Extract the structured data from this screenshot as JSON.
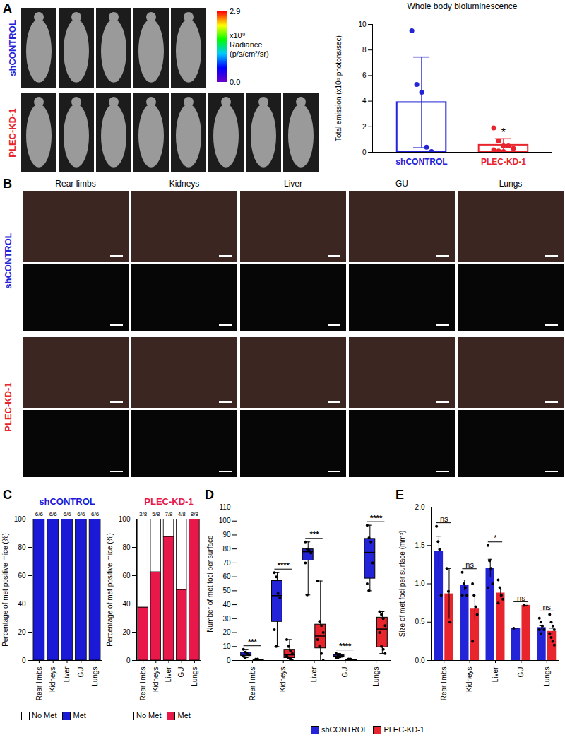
{
  "panels": [
    "A",
    "B",
    "C",
    "D",
    "E"
  ],
  "images": {
    "bioluminescence": {
      "groups": [
        {
          "name": "shCONTROL",
          "color": "#2323d8",
          "mice": 5
        },
        {
          "name": "PLEC-KD-1",
          "color": "#e8242c",
          "mice": 8
        }
      ],
      "colorbar": {
        "label": [
          "x10⁹",
          "Radiance",
          "(p/s/cm²/sr)"
        ],
        "range": [
          0,
          2.9
        ],
        "ticks": [
          2.9,
          {
            "value": 0,
            "label": "0.0"
          }
        ],
        "colors": [
          "#6a00c8",
          "#0000ff",
          "#00c8ff",
          "#00ff00",
          "#ffff00",
          "#ff0000"
        ]
      }
    },
    "organ_photos": {
      "columns": [
        "Rear limbs",
        "Kidneys",
        "Liver",
        "GU",
        "Lungs"
      ],
      "rows": [
        {
          "name": "shCONTROL",
          "color": "#2323d8"
        },
        {
          "name": "PLEC-KD-1",
          "color": "#e8242c"
        }
      ]
    }
  },
  "chart_data": [
    {
      "type": "bar",
      "title": "Whole body bioluminescence",
      "categories": [
        "shCONTROL",
        "PLEC-KD-1"
      ],
      "values": [
        3.9,
        0.56
      ],
      "errors": [
        3.55,
        0.5
      ],
      "points": [
        [
          9.5,
          5.3,
          4.7,
          0.4,
          0.05
        ],
        [
          1.9,
          0.9,
          0.5,
          0.5,
          0.3,
          0.2,
          0.1,
          0.05
        ]
      ],
      "colors": [
        "#2323d8",
        "#e8242c"
      ],
      "ylabel": "Total emission (x10⁸ photons/sec)",
      "ylim": [
        0,
        10
      ],
      "yticks": [
        0,
        2,
        4,
        6,
        8,
        10
      ],
      "annotations": [
        {
          "category": "PLEC-KD-1",
          "text": "*"
        }
      ]
    },
    {
      "type": "bar",
      "stacked": true,
      "title": "shCONTROL",
      "color": "#1a1ad6",
      "categories": [
        "Rear limbs",
        "Kidneys",
        "Liver",
        "GU",
        "Lungs"
      ],
      "series": [
        {
          "name": "No Met",
          "color": "#ffffff",
          "values": [
            0,
            0,
            0,
            0,
            0
          ]
        },
        {
          "name": "Met",
          "color": "#1a1ad6",
          "values": [
            100,
            100,
            100,
            100,
            100
          ]
        }
      ],
      "bar_labels": [
        "6/6",
        "6/6",
        "6/6",
        "6/6",
        "6/6"
      ],
      "ylabel": "Percentage of met positive mice (%)",
      "ylim": [
        0,
        100
      ],
      "yticks": [
        0,
        20,
        40,
        60,
        80,
        100
      ],
      "legend": "bottom"
    },
    {
      "type": "bar",
      "stacked": true,
      "title": "PLEC-KD-1",
      "color": "#e8184a",
      "categories": [
        "Rear limbs",
        "Kidneys",
        "Liver",
        "GU",
        "Lungs"
      ],
      "series": [
        {
          "name": "No Met",
          "color": "#ffffff",
          "values": [
            62.5,
            37.5,
            12.5,
            50,
            0
          ]
        },
        {
          "name": "Met",
          "color": "#e8184a",
          "values": [
            37.5,
            62.5,
            87.5,
            50,
            100
          ]
        }
      ],
      "bar_labels": [
        "3/8",
        "5/8",
        "7/8",
        "4/8",
        "8/8"
      ],
      "ylabel": "Percentage of met positive mice (%)",
      "ylim": [
        0,
        100
      ],
      "yticks": [
        0,
        20,
        40,
        60,
        80,
        100
      ],
      "legend": "bottom"
    },
    {
      "type": "box",
      "categories": [
        "Rear limbs",
        "Kidneys",
        "Liver",
        "GU",
        "Lungs"
      ],
      "series": [
        {
          "name": "shCONTROL",
          "color": "#2323d8",
          "points": [
            [
              8,
              6,
              5,
              4,
              3,
              2
            ],
            [
              63,
              60,
              48,
              45,
              22,
              10
            ],
            [
              85,
              80,
              79,
              77,
              70,
              47
            ],
            [
              5,
              4,
              3,
              3,
              2,
              2
            ],
            [
              97,
              88,
              85,
              70,
              55,
              50
            ]
          ]
        },
        {
          "name": "PLEC-KD-1",
          "color": "#e8242c",
          "points": [
            [
              1,
              1,
              0,
              0,
              0,
              0,
              0,
              0
            ],
            [
              15,
              10,
              7,
              5,
              3,
              2,
              1,
              0
            ],
            [
              57,
              28,
              25,
              20,
              15,
              10,
              5,
              0
            ],
            [
              1,
              1,
              0,
              0,
              0,
              0,
              0,
              0
            ],
            [
              35,
              33,
              30,
              25,
              20,
              10,
              8,
              5
            ]
          ]
        }
      ],
      "annotations": [
        "***",
        "****",
        "***",
        "****",
        "****"
      ],
      "ylabel": "Number of met foci per surface",
      "ylim": [
        0,
        110
      ],
      "yticks": [
        0,
        10,
        20,
        30,
        40,
        50,
        60,
        70,
        80,
        90,
        100,
        110
      ],
      "legend": "bottom"
    },
    {
      "type": "bar",
      "categories": [
        "Rear limbs",
        "Kidneys",
        "Liver",
        "GU",
        "Lungs"
      ],
      "series": [
        {
          "name": "shCONTROL",
          "color": "#2323d8",
          "values": [
            1.42,
            0.98,
            1.2,
            0.42,
            0.43
          ],
          "errors": [
            0.2,
            0.07,
            0.12,
            0,
            0.03
          ],
          "points": [
            [
              1.75,
              1.55,
              1.45,
              0.85
            ],
            [
              1.15,
              1.0,
              0.95,
              0.85,
              0.85
            ],
            [
              1.5,
              1.3,
              1.2,
              1.0,
              0.95
            ],
            [
              0.42
            ],
            [
              0.55,
              0.5,
              0.45,
              0.4,
              0.4,
              0.35
            ]
          ]
        },
        {
          "name": "PLEC-KD-1",
          "color": "#e8242c",
          "values": [
            0.87,
            0.68,
            0.88,
            0.72,
            0.38
          ],
          "errors": [
            0.33,
            0.15,
            0.05,
            0,
            0.04
          ],
          "points": [
            [
              1.2,
              0.9,
              0.5
            ],
            [
              1.0,
              0.85,
              0.7,
              0.6,
              0.25
            ],
            [
              1.05,
              0.95,
              0.85,
              0.8,
              0.75
            ],
            [
              0.72
            ],
            [
              0.6,
              0.5,
              0.45,
              0.4,
              0.35,
              0.3,
              0.25,
              0.2
            ]
          ]
        }
      ],
      "annotations": [
        "ns",
        "ns",
        "*",
        "ns",
        "ns"
      ],
      "ylabel": "Size of met foci per surface (mm³)",
      "ylim": [
        0,
        2
      ],
      "yticks": [
        {
          "value": 0,
          "label": "0.0"
        },
        {
          "value": 0.5,
          "label": "0.5"
        },
        {
          "value": 1,
          "label": "1.0"
        },
        {
          "value": 1.5,
          "label": "1.5"
        },
        {
          "value": 2,
          "label": "2.0"
        }
      ]
    }
  ]
}
